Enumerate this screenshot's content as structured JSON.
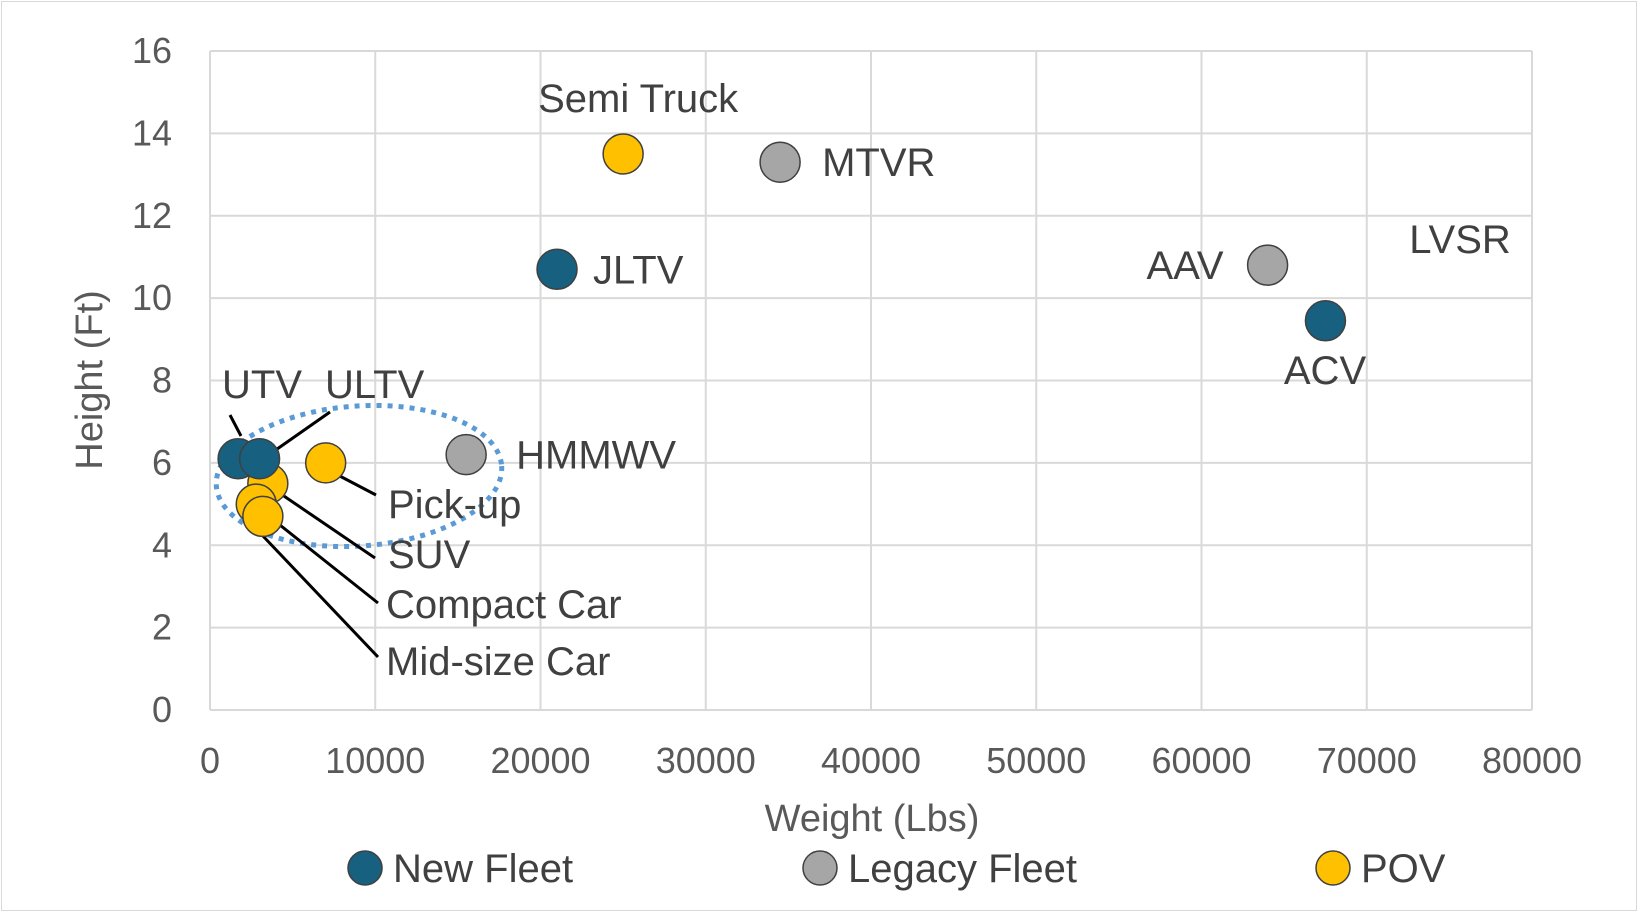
{
  "chart_data": {
    "type": "scatter",
    "xlabel": "Weight (Lbs)",
    "ylabel": "Height (Ft)",
    "xlim": [
      0,
      80000
    ],
    "ylim": [
      0,
      16
    ],
    "x_ticks": [
      "0",
      "10000",
      "20000",
      "30000",
      "40000",
      "50000",
      "60000",
      "70000",
      "80000"
    ],
    "y_ticks": [
      "0",
      "2",
      "4",
      "6",
      "8",
      "10",
      "12",
      "14",
      "16"
    ],
    "grid": true,
    "legend_position": "bottom",
    "series": [
      {
        "name": "New Fleet",
        "color": "#17607f",
        "points": [
          {
            "label": "UTV",
            "x": 1700,
            "y": 6.1
          },
          {
            "label": "ULTV",
            "x": 3000,
            "y": 6.1
          },
          {
            "label": "JLTV",
            "x": 21000,
            "y": 10.7
          },
          {
            "label": "ACV",
            "x": 67500,
            "y": 9.45
          },
          {
            "label": "LVSR",
            "x": null,
            "y": null
          }
        ]
      },
      {
        "name": "Legacy Fleet",
        "color": "#a6a6a6",
        "points": [
          {
            "label": "HMMWV",
            "x": 15500,
            "y": 6.2
          },
          {
            "label": "MTVR",
            "x": 34500,
            "y": 13.3
          },
          {
            "label": "AAV",
            "x": 64000,
            "y": 10.8
          }
        ]
      },
      {
        "name": "POV",
        "color": "#ffc000",
        "points": [
          {
            "label": "Semi Truck",
            "x": 25000,
            "y": 13.5
          },
          {
            "label": "Pick-up",
            "x": 7000,
            "y": 6.0
          },
          {
            "label": "SUV",
            "x": 3500,
            "y": 5.5
          },
          {
            "label": "Compact Car",
            "x": 2800,
            "y": 5.0
          },
          {
            "label": "Mid-size Car",
            "x": 3200,
            "y": 4.7
          }
        ]
      }
    ],
    "annotations": [
      "Dotted ellipse highlighting small vehicles"
    ]
  }
}
